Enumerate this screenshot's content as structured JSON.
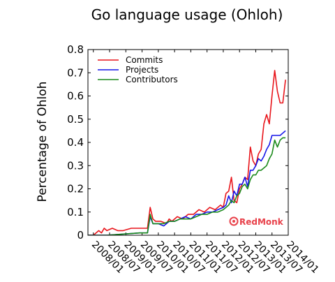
{
  "chart_data": {
    "type": "line",
    "title": "Go language usage (Ohloh)",
    "xlabel": "",
    "ylabel": "Percentage of Ohloh",
    "ylim": [
      0,
      0.8
    ],
    "yticks": [
      "0",
      "0.1",
      "0.2",
      "0.3",
      "0.4",
      "0.5",
      "0.6",
      "0.7",
      "0.8"
    ],
    "xticks": [
      "2008/01",
      "2008/07",
      "2009/01",
      "2009/07",
      "2010/01",
      "2010/07",
      "2011/01",
      "2011/07",
      "2012/01",
      "2012/07",
      "2013/01",
      "2013/07",
      "2014/01"
    ],
    "x_start": "2007/11",
    "x_end": "2014/01",
    "grid": false,
    "legend_position": "top-left",
    "series": [
      {
        "name": "Commits",
        "color": "#e8151b",
        "points": [
          [
            "2007/11",
            0.0
          ],
          [
            "2008/01",
            0.0
          ],
          [
            "2008/03",
            0.02
          ],
          [
            "2008/04",
            0.01
          ],
          [
            "2008/05",
            0.03
          ],
          [
            "2008/06",
            0.02
          ],
          [
            "2008/08",
            0.03
          ],
          [
            "2008/10",
            0.02
          ],
          [
            "2008/12",
            0.02
          ],
          [
            "2009/03",
            0.03
          ],
          [
            "2009/06",
            0.03
          ],
          [
            "2009/09",
            0.03
          ],
          [
            "2009/10",
            0.12
          ],
          [
            "2009/11",
            0.07
          ],
          [
            "2009/12",
            0.06
          ],
          [
            "2010/02",
            0.06
          ],
          [
            "2010/04",
            0.05
          ],
          [
            "2010/05",
            0.07
          ],
          [
            "2010/06",
            0.06
          ],
          [
            "2010/08",
            0.08
          ],
          [
            "2010/10",
            0.07
          ],
          [
            "2010/12",
            0.09
          ],
          [
            "2011/02",
            0.09
          ],
          [
            "2011/04",
            0.11
          ],
          [
            "2011/06",
            0.1
          ],
          [
            "2011/08",
            0.12
          ],
          [
            "2011/10",
            0.11
          ],
          [
            "2011/12",
            0.13
          ],
          [
            "2012/01",
            0.12
          ],
          [
            "2012/02",
            0.18
          ],
          [
            "2012/03",
            0.19
          ],
          [
            "2012/04",
            0.25
          ],
          [
            "2012/05",
            0.15
          ],
          [
            "2012/06",
            0.14
          ],
          [
            "2012/07",
            0.2
          ],
          [
            "2012/08",
            0.22
          ],
          [
            "2012/09",
            0.25
          ],
          [
            "2012/10",
            0.24
          ],
          [
            "2012/11",
            0.38
          ],
          [
            "2012/12",
            0.32
          ],
          [
            "2013/01",
            0.3
          ],
          [
            "2013/02",
            0.35
          ],
          [
            "2013/03",
            0.37
          ],
          [
            "2013/04",
            0.48
          ],
          [
            "2013/05",
            0.52
          ],
          [
            "2013/06",
            0.48
          ],
          [
            "2013/07",
            0.6
          ],
          [
            "2013/08",
            0.71
          ],
          [
            "2013/09",
            0.62
          ],
          [
            "2013/10",
            0.57
          ],
          [
            "2013/11",
            0.57
          ],
          [
            "2013/12",
            0.67
          ]
        ]
      },
      {
        "name": "Projects",
        "color": "#1515e8",
        "points": [
          [
            "2007/11",
            0.0
          ],
          [
            "2008/06",
            0.0
          ],
          [
            "2009/06",
            0.01
          ],
          [
            "2009/09",
            0.01
          ],
          [
            "2009/10",
            0.08
          ],
          [
            "2009/11",
            0.05
          ],
          [
            "2010/01",
            0.05
          ],
          [
            "2010/03",
            0.04
          ],
          [
            "2010/05",
            0.06
          ],
          [
            "2010/07",
            0.06
          ],
          [
            "2010/09",
            0.07
          ],
          [
            "2010/11",
            0.08
          ],
          [
            "2011/01",
            0.07
          ],
          [
            "2011/03",
            0.09
          ],
          [
            "2011/05",
            0.09
          ],
          [
            "2011/07",
            0.1
          ],
          [
            "2011/09",
            0.1
          ],
          [
            "2011/11",
            0.11
          ],
          [
            "2012/01",
            0.12
          ],
          [
            "2012/02",
            0.13
          ],
          [
            "2012/03",
            0.17
          ],
          [
            "2012/04",
            0.14
          ],
          [
            "2012/05",
            0.19
          ],
          [
            "2012/06",
            0.17
          ],
          [
            "2012/07",
            0.22
          ],
          [
            "2012/08",
            0.22
          ],
          [
            "2012/09",
            0.25
          ],
          [
            "2012/10",
            0.21
          ],
          [
            "2012/11",
            0.28
          ],
          [
            "2012/12",
            0.28
          ],
          [
            "2013/01",
            0.3
          ],
          [
            "2013/02",
            0.33
          ],
          [
            "2013/03",
            0.32
          ],
          [
            "2013/04",
            0.34
          ],
          [
            "2013/05",
            0.37
          ],
          [
            "2013/06",
            0.39
          ],
          [
            "2013/07",
            0.43
          ],
          [
            "2013/08",
            0.43
          ],
          [
            "2013/09",
            0.43
          ],
          [
            "2013/10",
            0.43
          ],
          [
            "2013/11",
            0.44
          ],
          [
            "2013/12",
            0.45
          ]
        ]
      },
      {
        "name": "Contributors",
        "color": "#1a8a1a",
        "points": [
          [
            "2007/11",
            0.0
          ],
          [
            "2008/06",
            0.0
          ],
          [
            "2009/06",
            0.01
          ],
          [
            "2009/09",
            0.01
          ],
          [
            "2009/10",
            0.09
          ],
          [
            "2009/11",
            0.05
          ],
          [
            "2010/01",
            0.05
          ],
          [
            "2010/03",
            0.05
          ],
          [
            "2010/05",
            0.06
          ],
          [
            "2010/07",
            0.06
          ],
          [
            "2010/09",
            0.07
          ],
          [
            "2010/11",
            0.07
          ],
          [
            "2011/01",
            0.07
          ],
          [
            "2011/03",
            0.08
          ],
          [
            "2011/05",
            0.09
          ],
          [
            "2011/07",
            0.09
          ],
          [
            "2011/09",
            0.1
          ],
          [
            "2011/11",
            0.1
          ],
          [
            "2012/01",
            0.11
          ],
          [
            "2012/02",
            0.12
          ],
          [
            "2012/03",
            0.13
          ],
          [
            "2012/04",
            0.15
          ],
          [
            "2012/05",
            0.14
          ],
          [
            "2012/06",
            0.17
          ],
          [
            "2012/07",
            0.18
          ],
          [
            "2012/08",
            0.21
          ],
          [
            "2012/09",
            0.22
          ],
          [
            "2012/10",
            0.2
          ],
          [
            "2012/11",
            0.24
          ],
          [
            "2012/12",
            0.26
          ],
          [
            "2013/01",
            0.26
          ],
          [
            "2013/02",
            0.28
          ],
          [
            "2013/03",
            0.28
          ],
          [
            "2013/04",
            0.29
          ],
          [
            "2013/05",
            0.3
          ],
          [
            "2013/06",
            0.33
          ],
          [
            "2013/07",
            0.35
          ],
          [
            "2013/08",
            0.41
          ],
          [
            "2013/09",
            0.38
          ],
          [
            "2013/10",
            0.41
          ],
          [
            "2013/11",
            0.42
          ],
          [
            "2013/12",
            0.42
          ]
        ]
      }
    ]
  },
  "watermark": {
    "brand": "RedMonk",
    "color": "#e8414a"
  }
}
